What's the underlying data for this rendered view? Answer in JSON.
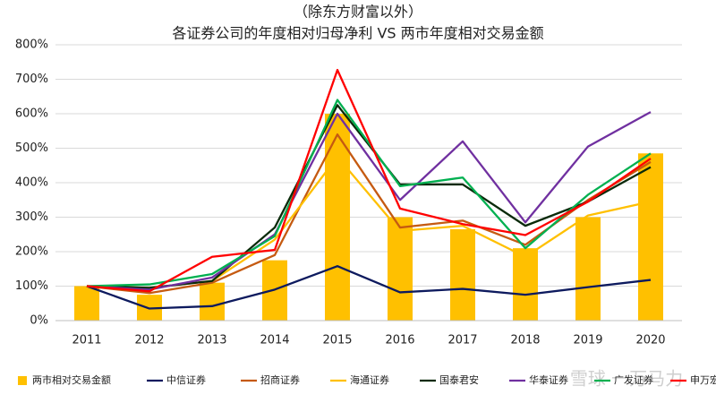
{
  "chart_data": {
    "type": "combo",
    "subtitle": "（除东方财富以外）",
    "title": "各证券公司的年度相对归母净利 VS 两市年度相对交易金额",
    "watermark": "雪球 一万马力",
    "categories": [
      "2011",
      "2012",
      "2013",
      "2014",
      "2015",
      "2016",
      "2017",
      "2018",
      "2019",
      "2020"
    ],
    "ylim": [
      0,
      800
    ],
    "yticks": [
      {
        "value": 0,
        "label": "0%"
      },
      {
        "value": 100,
        "label": "100%"
      },
      {
        "value": 200,
        "label": "200%"
      },
      {
        "value": 300,
        "label": "300%"
      },
      {
        "value": 400,
        "label": "400%"
      },
      {
        "value": 500,
        "label": "500%"
      },
      {
        "value": 600,
        "label": "600%"
      },
      {
        "value": 700,
        "label": "700%"
      },
      {
        "value": 800,
        "label": "800%"
      }
    ],
    "grid": true,
    "legend": "bottom",
    "series": [
      {
        "name": "两市相对交易金额",
        "type": "bar",
        "color": "#ffc000",
        "values": [
          100,
          75,
          110,
          175,
          600,
          300,
          265,
          210,
          300,
          485
        ]
      },
      {
        "name": "中信证券",
        "type": "line",
        "color": "#0d1a5e",
        "values": [
          100,
          35,
          42,
          90,
          158,
          82,
          92,
          75,
          97,
          118
        ]
      },
      {
        "name": "招商证券",
        "type": "line",
        "color": "#c55a11",
        "values": [
          100,
          80,
          110,
          190,
          540,
          270,
          290,
          220,
          350,
          460
        ]
      },
      {
        "name": "海通证券",
        "type": "line",
        "color": "#ffc000",
        "values": [
          100,
          95,
          115,
          235,
          475,
          260,
          275,
          185,
          305,
          345
        ]
      },
      {
        "name": "国泰君安",
        "type": "line",
        "color": "#0a2a0a",
        "values": [
          100,
          95,
          115,
          270,
          625,
          395,
          395,
          275,
          345,
          445
        ]
      },
      {
        "name": "华泰证券",
        "type": "line",
        "color": "#7030a0",
        "values": [
          100,
          90,
          125,
          250,
          600,
          350,
          520,
          285,
          505,
          605
        ]
      },
      {
        "name": "广发证券",
        "type": "line",
        "color": "#00b050",
        "values": [
          100,
          105,
          135,
          245,
          640,
          390,
          415,
          210,
          365,
          485
        ]
      },
      {
        "name": "申万宏源",
        "type": "line",
        "color": "#ff0000",
        "values": [
          100,
          85,
          185,
          205,
          727,
          325,
          280,
          248,
          345,
          470
        ]
      }
    ]
  }
}
